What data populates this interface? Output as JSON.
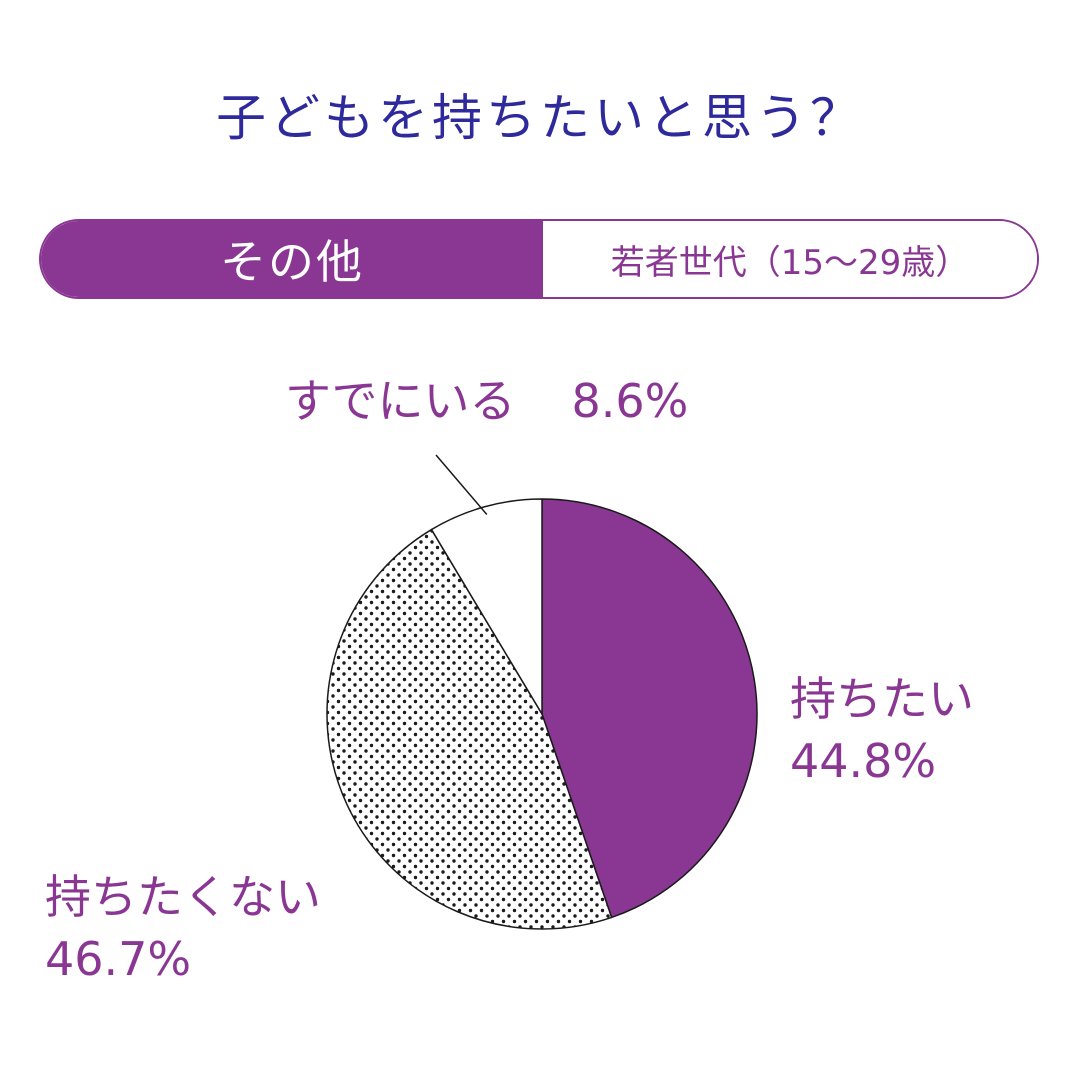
{
  "title": "子どもを持ちたいと思う？",
  "tabs": {
    "active": "その他",
    "inactive": "若者世代（15～29歳）"
  },
  "colors": {
    "title": "#2f2a9c",
    "accent": "#8a3794",
    "stroke": "#1a1a1a",
    "dots": "#1a1a1a"
  },
  "chart_data": {
    "type": "pie",
    "start": "top",
    "direction": "clockwise",
    "slices": [
      {
        "label": "持ちたい",
        "value": 44.8,
        "value_label": "44.8%",
        "fill": "accent"
      },
      {
        "label": "持ちたくない",
        "value": 46.7,
        "value_label": "46.7%",
        "fill": "dots"
      },
      {
        "label": "すでにいる",
        "value": 8.6,
        "value_label": "8.6%",
        "fill": "white"
      }
    ]
  }
}
